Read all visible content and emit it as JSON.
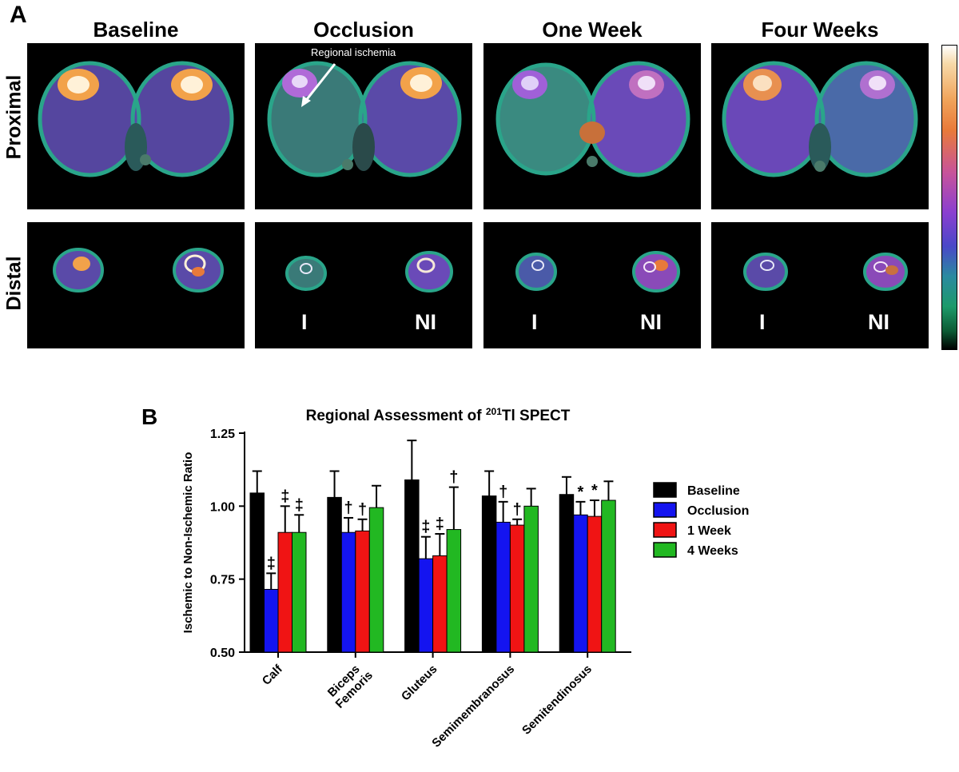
{
  "panel_a": {
    "letter": "A",
    "columns": [
      "Baseline",
      "Occlusion",
      "One Week",
      "Four Weeks"
    ],
    "rows": [
      "Proximal",
      "Distal"
    ],
    "annotation": "Regional ischemia",
    "leg_labels": {
      "ischemic": "I",
      "non_ischemic": "NI"
    },
    "colormap": "black-green-teal-purple-orange-white"
  },
  "panel_b": {
    "letter": "B"
  },
  "chart_data": {
    "type": "bar",
    "title_prefix": "Regional Assessment of ",
    "title_sup": "201",
    "title_suffix": "Tl SPECT",
    "ylabel": "Ischemic to Non-Ischemic Ratio",
    "ylim": [
      0.5,
      1.25
    ],
    "yticks": [
      "0.50",
      "0.75",
      "1.00",
      "1.25"
    ],
    "categories": [
      "Calf",
      "Biceps Femoris",
      "Gluteus",
      "Semimembranosus",
      "Semitendinosus"
    ],
    "series": [
      {
        "name": "Baseline",
        "color": "#000000",
        "values": [
          1.045,
          1.03,
          1.09,
          1.035,
          1.04
        ],
        "errors": [
          0.075,
          0.09,
          0.135,
          0.085,
          0.06
        ],
        "marks": [
          "",
          "",
          "",
          "",
          ""
        ]
      },
      {
        "name": "Occlusion",
        "color": "#1414f0",
        "values": [
          0.715,
          0.91,
          0.82,
          0.945,
          0.97
        ],
        "errors": [
          0.055,
          0.05,
          0.075,
          0.07,
          0.045
        ],
        "marks": [
          "‡",
          "†",
          "‡",
          "†",
          "*"
        ]
      },
      {
        "name": "1 Week",
        "color": "#f01414",
        "values": [
          0.91,
          0.915,
          0.83,
          0.935,
          0.965
        ],
        "errors": [
          0.09,
          0.04,
          0.075,
          0.02,
          0.055
        ],
        "marks": [
          "‡",
          "†",
          "‡",
          "†",
          "*"
        ]
      },
      {
        "name": "4 Weeks",
        "color": "#22b822",
        "values": [
          0.91,
          0.995,
          0.92,
          1.0,
          1.02
        ],
        "errors": [
          0.06,
          0.075,
          0.145,
          0.06,
          0.065
        ],
        "marks": [
          "‡",
          "",
          "†",
          "",
          ""
        ]
      }
    ],
    "legend_position": "right"
  }
}
